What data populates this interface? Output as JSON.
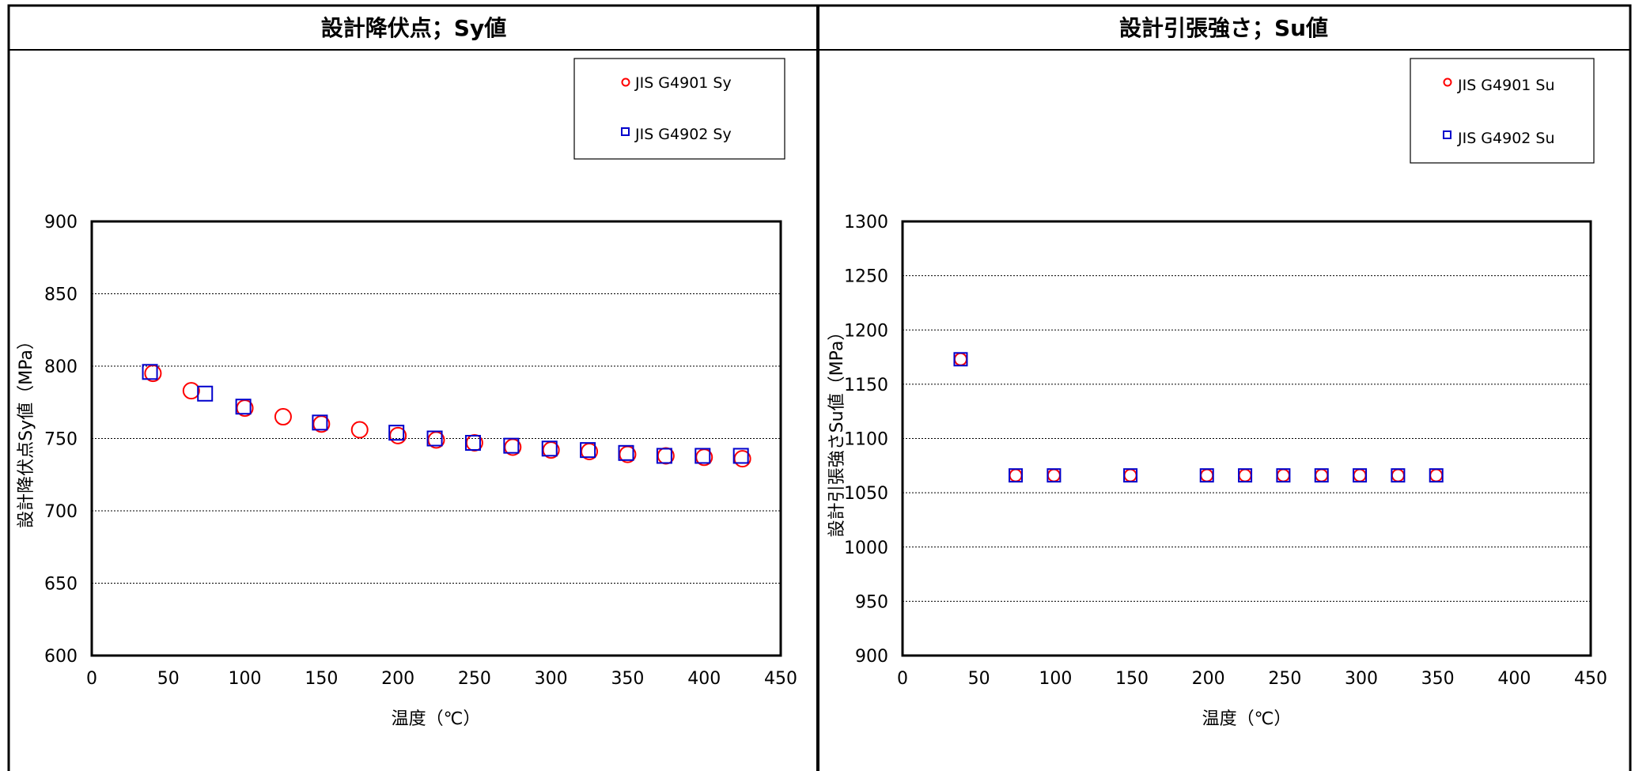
{
  "chart_data": [
    {
      "type": "scatter",
      "title": "設計降伏点；Sy値",
      "xlabel": "温度（℃）",
      "ylabel": "設計降伏点Sy値（MPa）",
      "xlim": [
        0,
        450
      ],
      "ylim": [
        600,
        900
      ],
      "xticks": [
        "0",
        "50",
        "100",
        "150",
        "200",
        "250",
        "300",
        "350",
        "400",
        "450"
      ],
      "yticks": [
        "600",
        "650",
        "700",
        "750",
        "800",
        "850",
        "900"
      ],
      "grid": "horizontal",
      "legend_placement": "top-right",
      "series": [
        {
          "name": "JIS G4901 Sy",
          "marker": "circle",
          "color": "#ff0000",
          "x": [
            40,
            65,
            100,
            125,
            150,
            175,
            200,
            225,
            250,
            275,
            300,
            325,
            350,
            375,
            400,
            425
          ],
          "y": [
            795,
            783,
            771,
            765,
            760,
            756,
            752,
            749,
            747,
            744,
            742,
            741,
            739,
            738,
            737,
            736
          ]
        },
        {
          "name": "JIS G4902 Sy",
          "marker": "square",
          "color": "#0000cc",
          "x": [
            38,
            74,
            99,
            149,
            199,
            224,
            249,
            274,
            299,
            324,
            349,
            374,
            399,
            424
          ],
          "y": [
            796,
            781,
            772,
            761,
            754,
            750,
            747,
            745,
            743,
            742,
            740,
            738,
            738,
            738
          ]
        }
      ]
    },
    {
      "type": "scatter",
      "title": "設計引張強さ；Su値",
      "xlabel": "温度（℃）",
      "ylabel": "設計引張強さSu値（MPa）",
      "xlim": [
        0,
        450
      ],
      "ylim": [
        900,
        1300
      ],
      "xticks": [
        "0",
        "50",
        "100",
        "150",
        "200",
        "250",
        "300",
        "350",
        "400",
        "450"
      ],
      "yticks": [
        "900",
        "950",
        "1000",
        "1050",
        "1100",
        "1150",
        "1200",
        "1250",
        "1300"
      ],
      "grid": "horizontal",
      "legend_placement": "top-right",
      "series": [
        {
          "name": "JIS G4901 Su",
          "marker": "circle",
          "color": "#ff0000",
          "x": [
            38,
            74,
            99,
            149,
            199,
            224,
            249,
            274,
            299,
            324,
            349
          ],
          "y": [
            1173,
            1066,
            1066,
            1066,
            1066,
            1066,
            1066,
            1066,
            1066,
            1066,
            1066
          ]
        },
        {
          "name": "JIS G4902 Su",
          "marker": "square",
          "color": "#0000cc",
          "x": [
            38,
            74,
            99,
            149,
            199,
            224,
            249,
            274,
            299,
            324,
            349
          ],
          "y": [
            1173,
            1066,
            1066,
            1066,
            1066,
            1066,
            1066,
            1066,
            1066,
            1066,
            1066
          ]
        }
      ]
    }
  ]
}
